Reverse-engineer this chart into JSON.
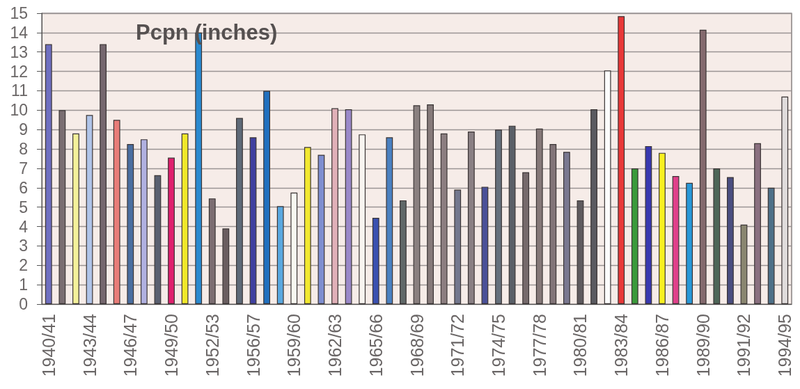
{
  "chart_data": {
    "type": "bar",
    "title": "Pcpn (inches)",
    "categories": [
      "1940/41",
      null,
      null,
      "1943/44",
      null,
      null,
      "1946/47",
      null,
      null,
      "1949/50",
      null,
      null,
      "1952/53",
      null,
      null,
      "1956/57",
      null,
      null,
      "1959/60",
      null,
      null,
      "1962/63",
      null,
      null,
      "1965/66",
      null,
      null,
      "1968/69",
      null,
      null,
      "1971/72",
      null,
      null,
      "1974/75",
      null,
      null,
      "1977/78",
      null,
      null,
      "1980/81",
      null,
      null,
      "1983/84",
      null,
      null,
      "1986/87",
      null,
      null,
      "1989/90",
      null,
      null,
      "1991/92",
      null,
      null,
      "1994/95"
    ],
    "values": [
      13.4,
      10.0,
      8.8,
      9.75,
      13.4,
      9.5,
      8.25,
      8.5,
      6.65,
      7.55,
      8.8,
      14.0,
      5.45,
      3.9,
      9.6,
      8.6,
      11.0,
      5.05,
      5.75,
      8.1,
      7.7,
      10.1,
      10.05,
      8.75,
      4.45,
      8.6,
      5.35,
      10.25,
      10.3,
      8.8,
      5.9,
      8.9,
      6.05,
      9.0,
      9.2,
      6.8,
      9.05,
      8.25,
      7.85,
      5.35,
      10.05,
      12.05,
      14.85,
      7.0,
      8.15,
      7.8,
      6.6,
      6.25,
      14.15,
      7.0,
      6.55,
      4.1,
      8.3,
      6.0,
      10.7
    ],
    "colors": [
      "#6f6fc0",
      "#7a6e72",
      "#f3f09a",
      "#b0c4e8",
      "#75676e",
      "#e87c78",
      "#4a6ea0",
      "#b0b0e0",
      "#5a6070",
      "#e0206e",
      "#f0e82a",
      "#2a8ad0",
      "#7c6e72",
      "#6a5e60",
      "#5e6a78",
      "#4040a0",
      "#2070c0",
      "#5aa8e0",
      "#f8f8f0",
      "#f2e830",
      "#7e8ed0",
      "#e0b0b8",
      "#9a88c8",
      "#f8f4f0",
      "#3a50b0",
      "#4a80c0",
      "#606868",
      "#8a8080",
      "#867a7a",
      "#8c7e80",
      "#74788e",
      "#8a8084",
      "#4a5098",
      "#66707c",
      "#5a6068",
      "#766a6c",
      "#857878",
      "#827478",
      "#7a7890",
      "#5e5a5e",
      "#5a5a60",
      "#fcfcfc",
      "#e83838",
      "#3a9a3a",
      "#3838b0",
      "#f8f020",
      "#e0408a",
      "#2898d8",
      "#846a6e",
      "#4e6658",
      "#4a4e80",
      "#8a8670",
      "#8a7080",
      "#4e7088",
      "#e0dcdc"
    ],
    "ylim": [
      0,
      15
    ],
    "yticks": [
      0,
      1,
      2,
      3,
      4,
      5,
      6,
      7,
      8,
      9,
      10,
      11,
      12,
      13,
      14,
      15
    ],
    "grid": "y"
  }
}
